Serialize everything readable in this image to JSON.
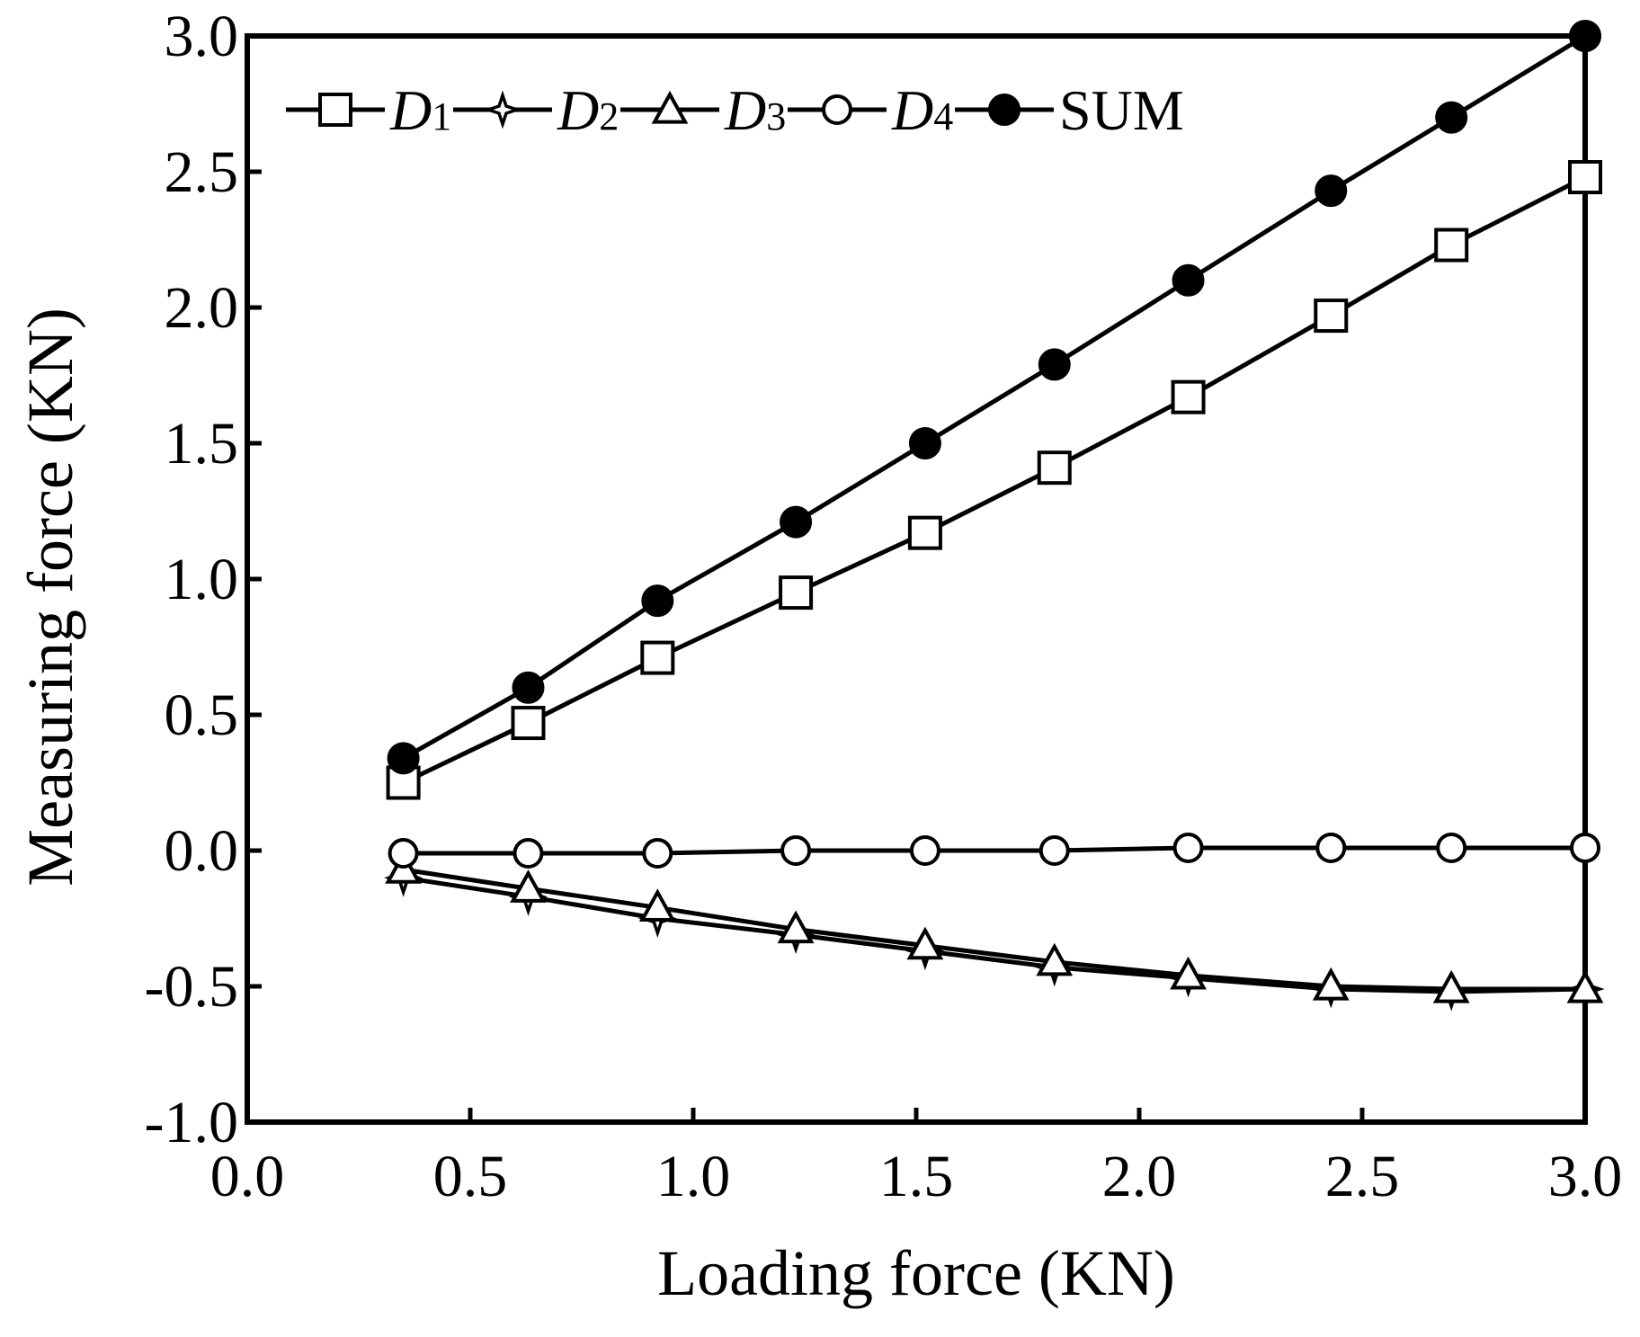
{
  "chart_data": {
    "type": "line",
    "xlabel": "Loading force (KN)",
    "ylabel": "Measuring force  (KN)",
    "xlim": [
      0.0,
      3.0
    ],
    "ylim": [
      -1.0,
      3.0
    ],
    "x_ticks": [
      "0.0",
      "0.5",
      "1.0",
      "1.5",
      "2.0",
      "2.5",
      "3.0"
    ],
    "y_ticks": [
      "-1.0",
      "-0.5",
      "0.0",
      "0.5",
      "1.0",
      "1.5",
      "2.0",
      "2.5",
      "3.0"
    ],
    "grid": false,
    "legend_position": "top",
    "x": [
      0.35,
      0.63,
      0.92,
      1.23,
      1.52,
      1.81,
      2.11,
      2.43,
      2.7,
      3.0
    ],
    "series": [
      {
        "name": "D1",
        "legend_main": "D",
        "legend_sub": "1",
        "marker": "square-open",
        "values": [
          0.25,
          0.47,
          0.71,
          0.95,
          1.17,
          1.41,
          1.67,
          1.97,
          2.23,
          2.48
        ]
      },
      {
        "name": "D2",
        "legend_main": "D",
        "legend_sub": "2",
        "marker": "star4-open",
        "values": [
          -0.1,
          -0.17,
          -0.25,
          -0.31,
          -0.37,
          -0.43,
          -0.47,
          -0.51,
          -0.52,
          -0.51
        ]
      },
      {
        "name": "D3",
        "legend_main": "D",
        "legend_sub": "3",
        "marker": "triangle-open",
        "values": [
          -0.07,
          -0.14,
          -0.21,
          -0.29,
          -0.35,
          -0.41,
          -0.46,
          -0.5,
          -0.51,
          -0.51
        ]
      },
      {
        "name": "D4",
        "legend_main": "D",
        "legend_sub": "4",
        "marker": "circle-open",
        "values": [
          -0.01,
          -0.01,
          -0.01,
          0.0,
          0.0,
          0.0,
          0.01,
          0.01,
          0.01,
          0.01
        ]
      },
      {
        "name": "SUM",
        "legend_main": "SUM",
        "legend_sub": "",
        "marker": "circle-filled",
        "values": [
          0.34,
          0.6,
          0.92,
          1.21,
          1.5,
          1.79,
          2.1,
          2.43,
          2.7,
          3.0
        ]
      }
    ]
  }
}
